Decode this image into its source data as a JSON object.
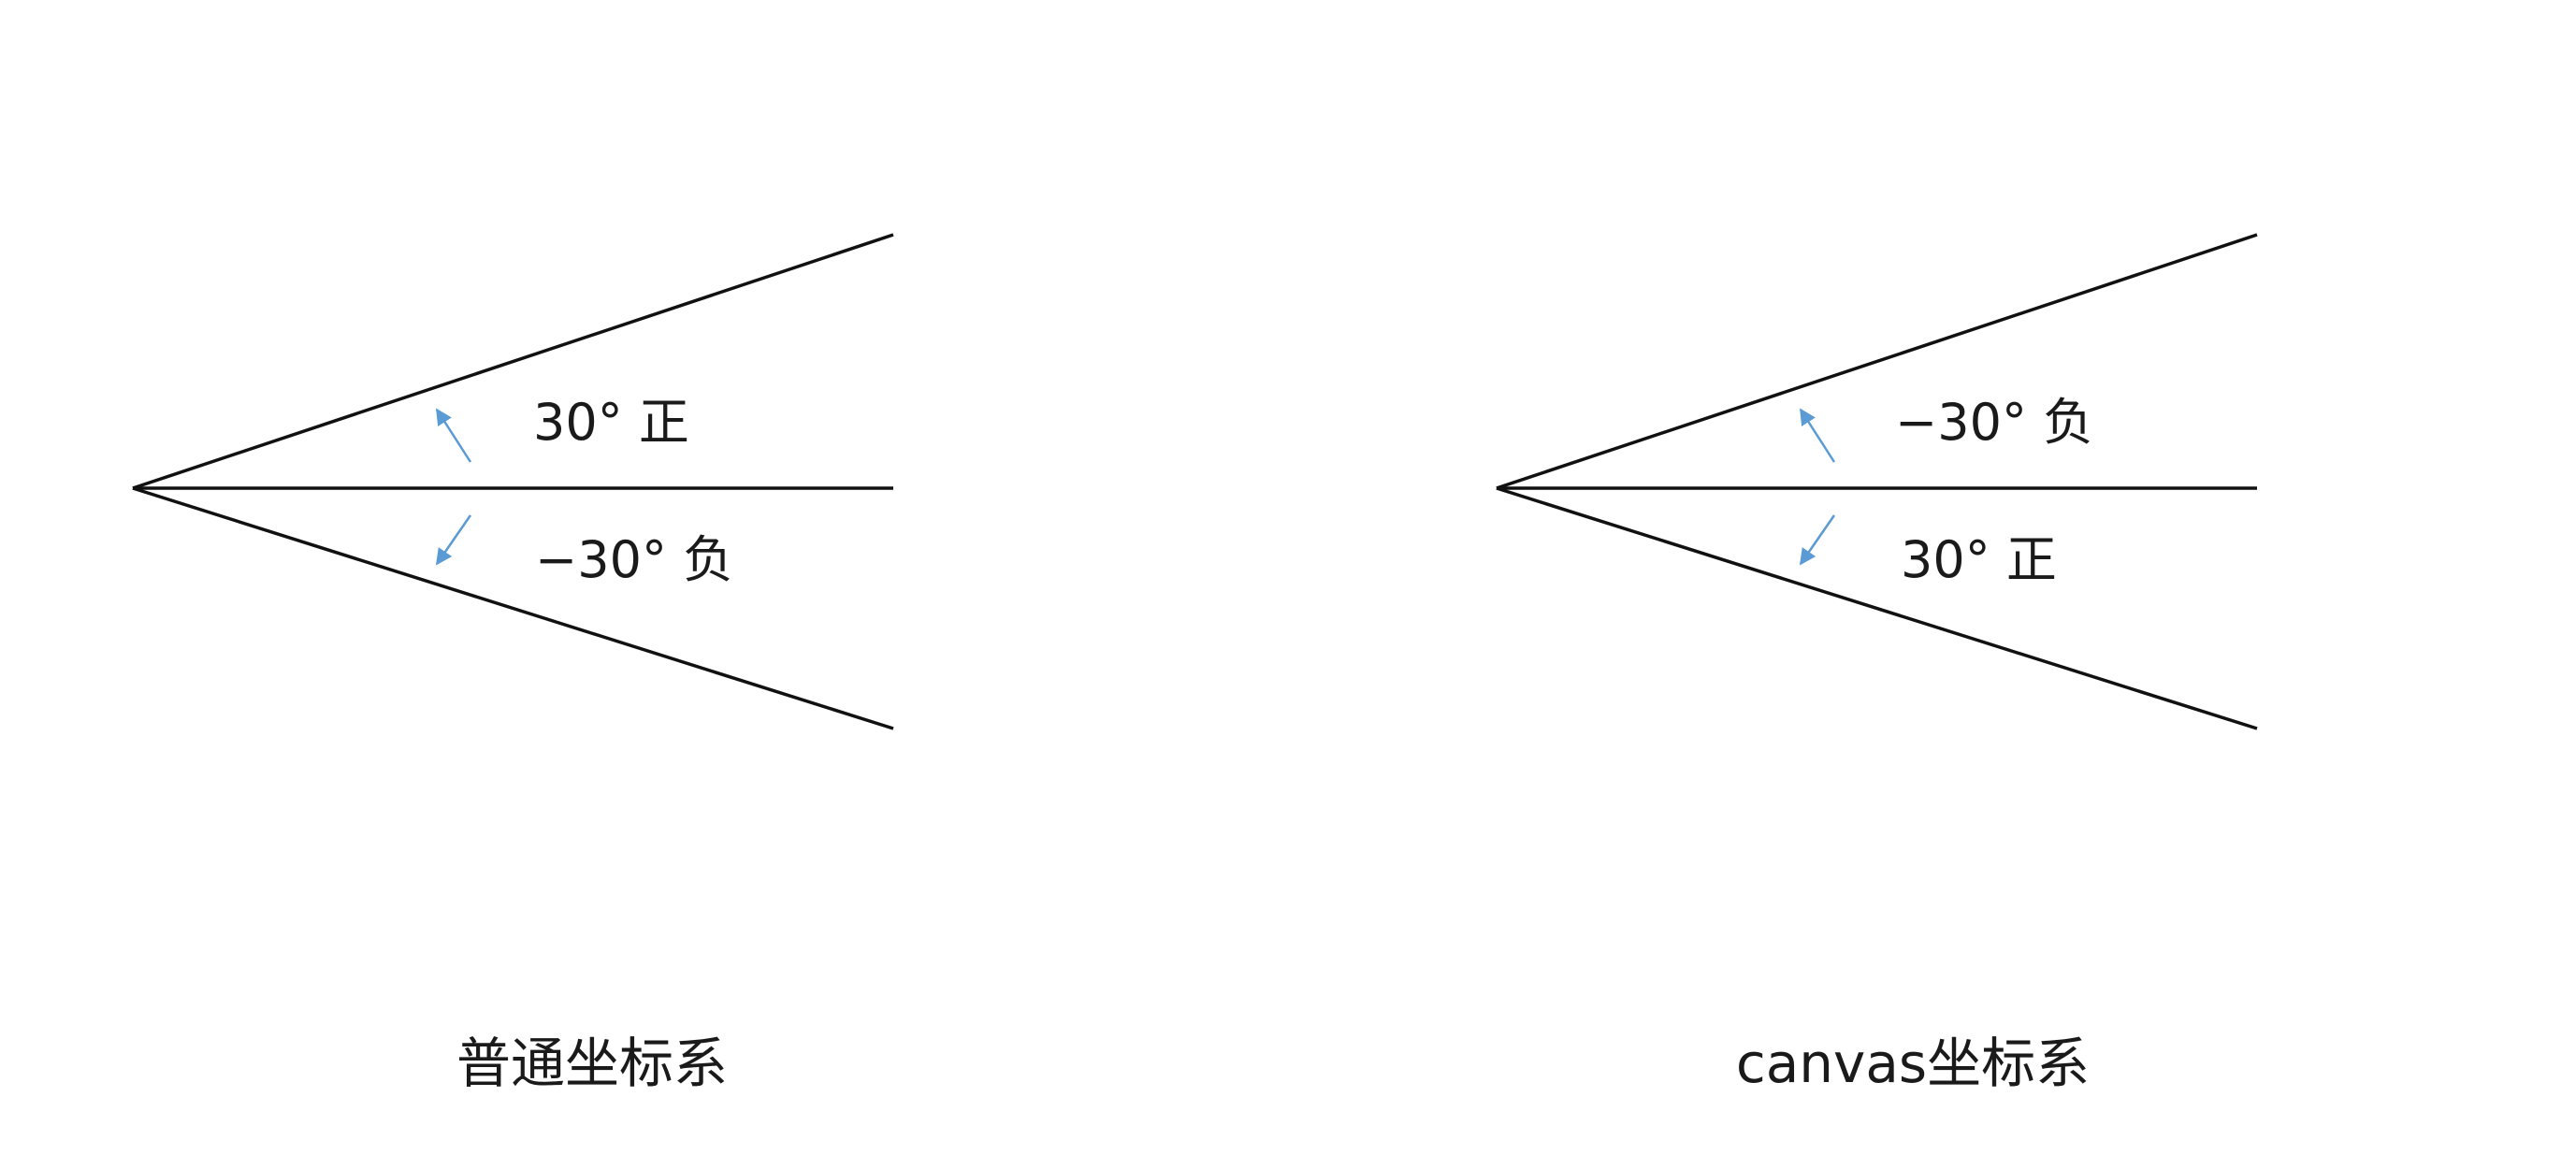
{
  "colors": {
    "line": "#111111",
    "arrow": "#5b9bd5",
    "text": "#1a1a1a",
    "background": "#ffffff"
  },
  "diagrams": [
    {
      "caption": "普通坐标系",
      "upper_label": "30° 正",
      "lower_label": "−30° 负",
      "arrow_icons": [
        "arrow-up-left-icon",
        "arrow-down-left-icon"
      ]
    },
    {
      "caption": "canvas坐标系",
      "upper_label": "−30° 负",
      "lower_label": "30° 正",
      "arrow_icons": [
        "arrow-up-left-icon",
        "arrow-down-left-icon"
      ]
    }
  ]
}
